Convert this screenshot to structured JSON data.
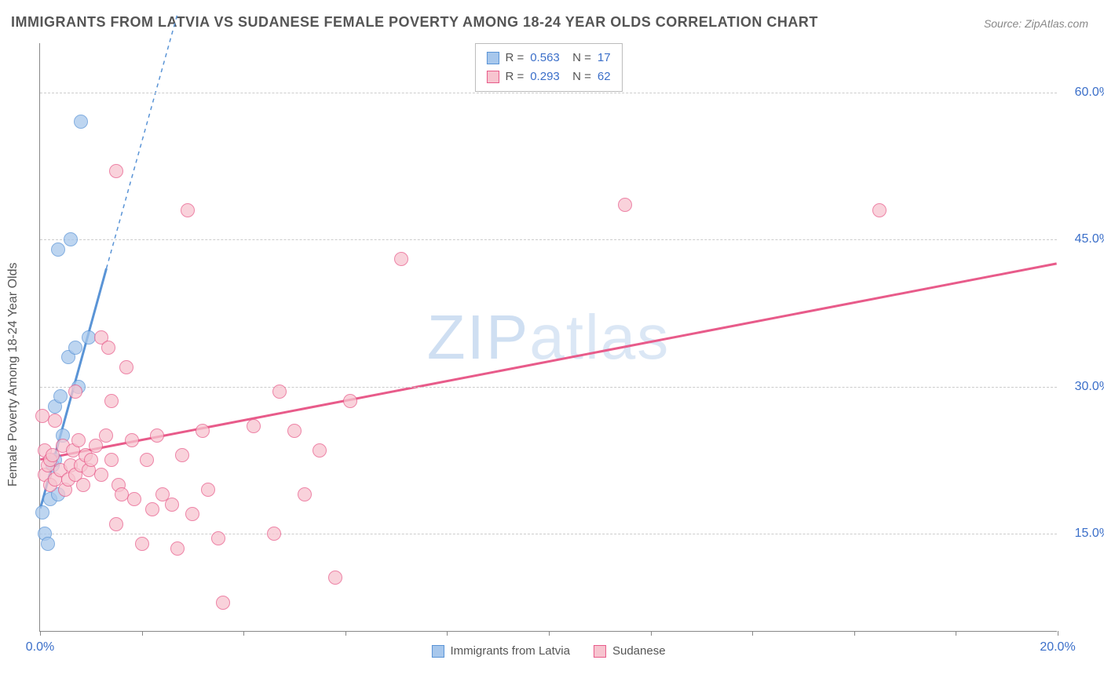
{
  "title": "IMMIGRANTS FROM LATVIA VS SUDANESE FEMALE POVERTY AMONG 18-24 YEAR OLDS CORRELATION CHART",
  "source": "Source: ZipAtlas.com",
  "watermark_a": "ZIP",
  "watermark_b": "atlas",
  "chart": {
    "type": "scatter",
    "y_axis_label": "Female Poverty Among 18-24 Year Olds",
    "xlim": [
      0,
      20
    ],
    "ylim": [
      5,
      65
    ],
    "y_ticks": [
      15,
      30,
      45,
      60
    ],
    "y_tick_labels": [
      "15.0%",
      "30.0%",
      "45.0%",
      "60.0%"
    ],
    "x_ticks": [
      0,
      2,
      4,
      6,
      8,
      10,
      12,
      14,
      16,
      18,
      20
    ],
    "x_tick_labels_show": [
      0,
      20
    ],
    "x_tick_labels": {
      "0": "0.0%",
      "20": "20.0%"
    },
    "grid_color": "#cccccc",
    "axis_color": "#888888",
    "background_color": "#ffffff",
    "marker_radius": 9,
    "marker_border": 1.5,
    "series": [
      {
        "name": "Immigrants from Latvia",
        "color_fill": "#a7c7ec",
        "color_stroke": "#5a94d6",
        "r": "0.563",
        "n": "17",
        "trend": {
          "x1": 0,
          "y1": 17.5,
          "x2": 1.3,
          "y2": 42,
          "dash_x2": 2.7,
          "dash_y2": 68
        },
        "points": [
          [
            0.05,
            17.2
          ],
          [
            0.1,
            15.0
          ],
          [
            0.15,
            14.0
          ],
          [
            0.2,
            18.5
          ],
          [
            0.25,
            22.0
          ],
          [
            0.3,
            22.5
          ],
          [
            0.3,
            28.0
          ],
          [
            0.35,
            19.0
          ],
          [
            0.4,
            29.0
          ],
          [
            0.45,
            25.0
          ],
          [
            0.55,
            33.0
          ],
          [
            0.6,
            45.0
          ],
          [
            0.7,
            34.0
          ],
          [
            0.75,
            30.0
          ],
          [
            0.8,
            57.0
          ],
          [
            0.95,
            35.0
          ],
          [
            0.35,
            44.0
          ]
        ]
      },
      {
        "name": "Sudanese",
        "color_fill": "#f7c4cf",
        "color_stroke": "#e85b8a",
        "r": "0.293",
        "n": "62",
        "trend": {
          "x1": 0,
          "y1": 22.5,
          "x2": 20,
          "y2": 42.5
        },
        "points": [
          [
            0.05,
            27.0
          ],
          [
            0.1,
            21.0
          ],
          [
            0.1,
            23.5
          ],
          [
            0.15,
            22.0
          ],
          [
            0.2,
            20.0
          ],
          [
            0.2,
            22.5
          ],
          [
            0.25,
            23.0
          ],
          [
            0.3,
            20.5
          ],
          [
            0.3,
            26.5
          ],
          [
            0.4,
            21.5
          ],
          [
            0.45,
            24.0
          ],
          [
            0.5,
            19.5
          ],
          [
            0.55,
            20.5
          ],
          [
            0.6,
            22.0
          ],
          [
            0.65,
            23.5
          ],
          [
            0.7,
            21.0
          ],
          [
            0.75,
            24.5
          ],
          [
            0.8,
            22.0
          ],
          [
            0.85,
            20.0
          ],
          [
            0.9,
            23.0
          ],
          [
            0.95,
            21.5
          ],
          [
            1.0,
            22.5
          ],
          [
            1.1,
            24.0
          ],
          [
            1.2,
            21.0
          ],
          [
            1.3,
            25.0
          ],
          [
            1.4,
            22.5
          ],
          [
            1.4,
            28.5
          ],
          [
            1.5,
            52.0
          ],
          [
            1.5,
            16.0
          ],
          [
            1.55,
            20.0
          ],
          [
            1.6,
            19.0
          ],
          [
            1.7,
            32.0
          ],
          [
            1.8,
            24.5
          ],
          [
            1.85,
            18.5
          ],
          [
            2.0,
            14.0
          ],
          [
            2.1,
            22.5
          ],
          [
            2.2,
            17.5
          ],
          [
            2.3,
            25.0
          ],
          [
            2.4,
            19.0
          ],
          [
            2.6,
            18.0
          ],
          [
            2.7,
            13.5
          ],
          [
            2.8,
            23.0
          ],
          [
            2.9,
            48.0
          ],
          [
            3.0,
            17.0
          ],
          [
            3.2,
            25.5
          ],
          [
            3.3,
            19.5
          ],
          [
            3.5,
            14.5
          ],
          [
            3.6,
            8.0
          ],
          [
            4.2,
            26.0
          ],
          [
            4.6,
            15.0
          ],
          [
            4.7,
            29.5
          ],
          [
            5.0,
            25.5
          ],
          [
            5.2,
            19.0
          ],
          [
            5.5,
            23.5
          ],
          [
            5.8,
            10.5
          ],
          [
            6.1,
            28.5
          ],
          [
            7.1,
            43.0
          ],
          [
            1.2,
            35.0
          ],
          [
            1.35,
            34.0
          ],
          [
            0.7,
            29.5
          ],
          [
            11.5,
            48.5
          ],
          [
            16.5,
            48.0
          ]
        ]
      }
    ],
    "legend_bottom": [
      {
        "label": "Immigrants from Latvia",
        "fill": "#a7c7ec",
        "stroke": "#5a94d6"
      },
      {
        "label": "Sudanese",
        "fill": "#f7c4cf",
        "stroke": "#e85b8a"
      }
    ]
  }
}
